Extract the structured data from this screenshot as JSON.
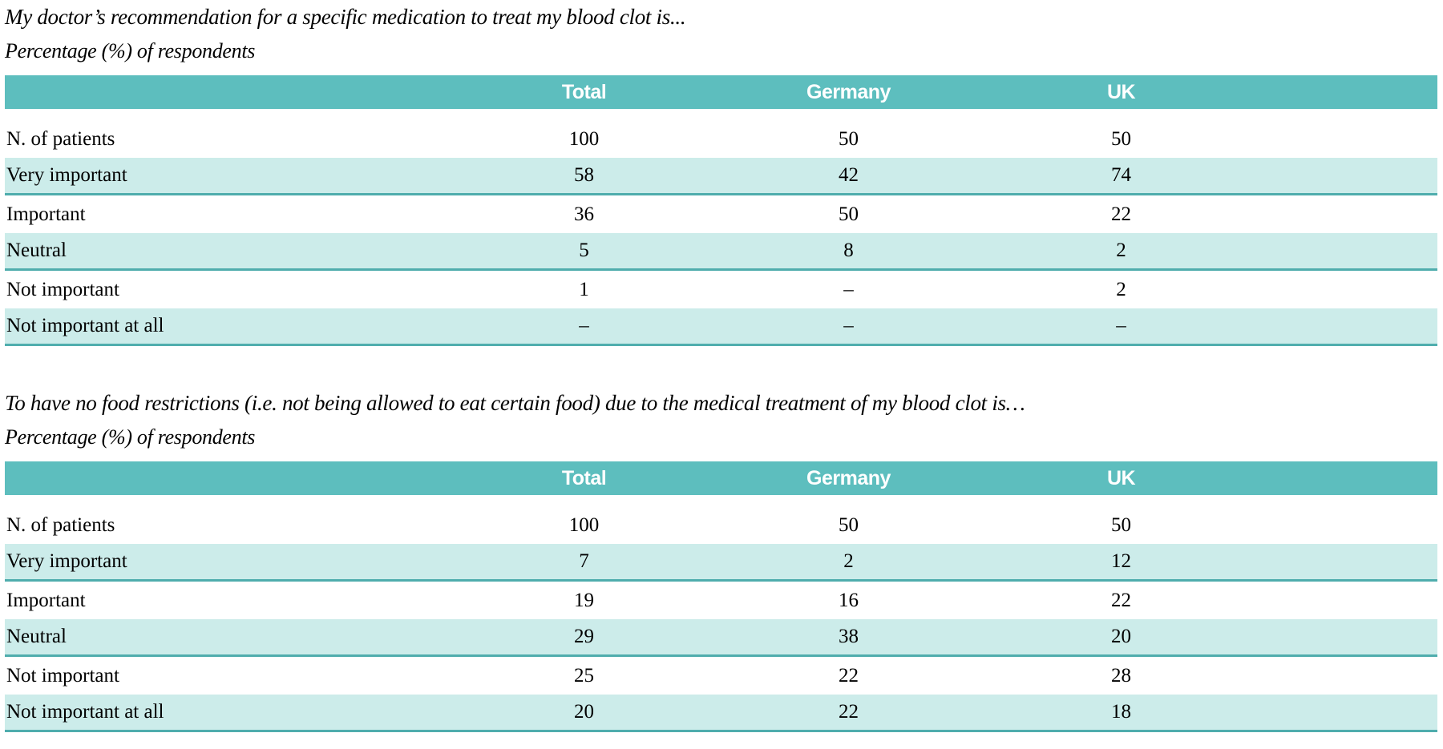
{
  "colors": {
    "header_bg": "#5dbebe",
    "shaded_row_bg": "#ccecea",
    "row_border": "#4fadad"
  },
  "tables": [
    {
      "title": "My doctor’s recommendation for a specific medication to treat my blood clot is...",
      "subtitle": "Percentage (%) of respondents",
      "columns": [
        "",
        "Total",
        "Germany",
        "UK"
      ],
      "rows": [
        {
          "label": "N. of patients",
          "total": "100",
          "germany": "50",
          "uk": "50"
        },
        {
          "label": "Very important",
          "total": "58",
          "germany": "42",
          "uk": "74"
        },
        {
          "label": "Important",
          "total": "36",
          "germany": "50",
          "uk": "22"
        },
        {
          "label": "Neutral",
          "total": "5",
          "germany": "8",
          "uk": "2"
        },
        {
          "label": "Not important",
          "total": "1",
          "germany": "–",
          "uk": "2"
        },
        {
          "label": "Not important at all",
          "total": "–",
          "germany": "–",
          "uk": "–"
        }
      ]
    },
    {
      "title": "To have no food restrictions (i.e. not being allowed to eat certain food) due to the medical treatment of my blood clot is…",
      "subtitle": "Percentage (%) of respondents",
      "columns": [
        "",
        "Total",
        "Germany",
        "UK"
      ],
      "rows": [
        {
          "label": "N. of patients",
          "total": "100",
          "germany": "50",
          "uk": "50"
        },
        {
          "label": "Very important",
          "total": "7",
          "germany": "2",
          "uk": "12"
        },
        {
          "label": "Important",
          "total": "19",
          "germany": "16",
          "uk": "22"
        },
        {
          "label": "Neutral",
          "total": "29",
          "germany": "38",
          "uk": "20"
        },
        {
          "label": "Not important",
          "total": "25",
          "germany": "22",
          "uk": "28"
        },
        {
          "label": "Not important at all",
          "total": "20",
          "germany": "22",
          "uk": "18"
        }
      ]
    }
  ]
}
